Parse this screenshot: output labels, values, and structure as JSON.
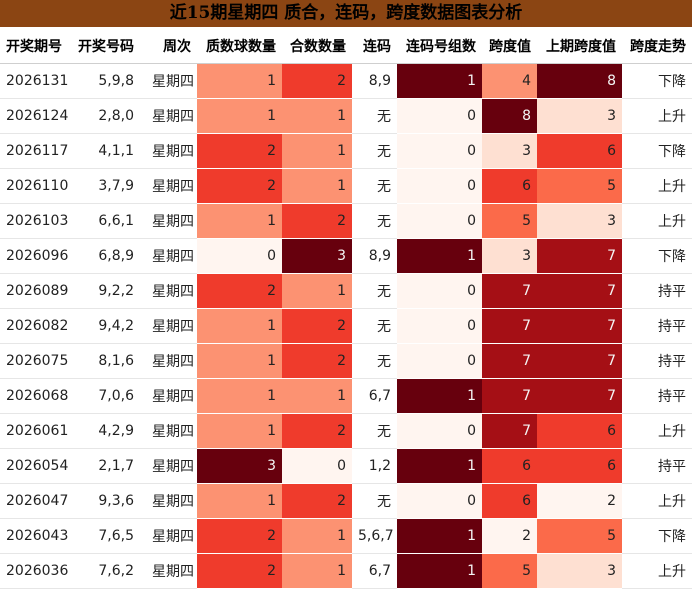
{
  "title": "近15期星期四 质合，连码，跨度数据图表分析",
  "columns": [
    {
      "key": "period",
      "label": "开奖期号",
      "align": "left",
      "width": 72
    },
    {
      "key": "numbers",
      "label": "开奖号码",
      "align": "right",
      "width": 68
    },
    {
      "key": "weekday",
      "label": "周次",
      "align": "right",
      "width": 57
    },
    {
      "key": "prime_count",
      "label": "质数球数量",
      "align": "right",
      "width": 85
    },
    {
      "key": "composite_count",
      "label": "合数数量",
      "align": "right",
      "width": 70
    },
    {
      "key": "consecutive",
      "label": "连码",
      "align": "right",
      "width": 45
    },
    {
      "key": "consec_groups",
      "label": "连码号组数",
      "align": "right",
      "width": 85
    },
    {
      "key": "span",
      "label": "跨度值",
      "align": "right",
      "width": 55
    },
    {
      "key": "prev_span",
      "label": "上期跨度值",
      "align": "right",
      "width": 85
    },
    {
      "key": "trend",
      "label": "跨度走势",
      "align": "right",
      "width": 70
    }
  ],
  "heat_columns": {
    "prime_count": {
      "min": 0,
      "max": 3
    },
    "composite_count": {
      "min": 0,
      "max": 3
    },
    "consec_groups": {
      "min": 0,
      "max": 1
    },
    "span": {
      "min": 2,
      "max": 8
    },
    "prev_span": {
      "min": 2,
      "max": 8
    }
  },
  "colors": {
    "header_bg": "#8b4513",
    "heat_scale": [
      "#fff5f0",
      "#fee0d2",
      "#fcbba1",
      "#fc9272",
      "#fb6a4a",
      "#ef3b2c",
      "#cb181d",
      "#a50f15",
      "#67000d"
    ]
  },
  "chart_data": {
    "type": "table",
    "title": "近15期星期四 质合，连码，跨度数据图表分析",
    "rows": [
      {
        "period": "2026131",
        "numbers": "5,9,8",
        "weekday": "星期四",
        "prime_count": 1,
        "composite_count": 2,
        "consecutive": "8,9",
        "consec_groups": 1,
        "span": 4,
        "prev_span": 8,
        "trend": "下降"
      },
      {
        "period": "2026124",
        "numbers": "2,8,0",
        "weekday": "星期四",
        "prime_count": 1,
        "composite_count": 1,
        "consecutive": "无",
        "consec_groups": 0,
        "span": 8,
        "prev_span": 3,
        "trend": "上升"
      },
      {
        "period": "2026117",
        "numbers": "4,1,1",
        "weekday": "星期四",
        "prime_count": 2,
        "composite_count": 1,
        "consecutive": "无",
        "consec_groups": 0,
        "span": 3,
        "prev_span": 6,
        "trend": "下降"
      },
      {
        "period": "2026110",
        "numbers": "3,7,9",
        "weekday": "星期四",
        "prime_count": 2,
        "composite_count": 1,
        "consecutive": "无",
        "consec_groups": 0,
        "span": 6,
        "prev_span": 5,
        "trend": "上升"
      },
      {
        "period": "2026103",
        "numbers": "6,6,1",
        "weekday": "星期四",
        "prime_count": 1,
        "composite_count": 2,
        "consecutive": "无",
        "consec_groups": 0,
        "span": 5,
        "prev_span": 3,
        "trend": "上升"
      },
      {
        "period": "2026096",
        "numbers": "6,8,9",
        "weekday": "星期四",
        "prime_count": 0,
        "composite_count": 3,
        "consecutive": "8,9",
        "consec_groups": 1,
        "span": 3,
        "prev_span": 7,
        "trend": "下降"
      },
      {
        "period": "2026089",
        "numbers": "9,2,2",
        "weekday": "星期四",
        "prime_count": 2,
        "composite_count": 1,
        "consecutive": "无",
        "consec_groups": 0,
        "span": 7,
        "prev_span": 7,
        "trend": "持平"
      },
      {
        "period": "2026082",
        "numbers": "9,4,2",
        "weekday": "星期四",
        "prime_count": 1,
        "composite_count": 2,
        "consecutive": "无",
        "consec_groups": 0,
        "span": 7,
        "prev_span": 7,
        "trend": "持平"
      },
      {
        "period": "2026075",
        "numbers": "8,1,6",
        "weekday": "星期四",
        "prime_count": 1,
        "composite_count": 2,
        "consecutive": "无",
        "consec_groups": 0,
        "span": 7,
        "prev_span": 7,
        "trend": "持平"
      },
      {
        "period": "2026068",
        "numbers": "7,0,6",
        "weekday": "星期四",
        "prime_count": 1,
        "composite_count": 1,
        "consecutive": "6,7",
        "consec_groups": 1,
        "span": 7,
        "prev_span": 7,
        "trend": "持平"
      },
      {
        "period": "2026061",
        "numbers": "4,2,9",
        "weekday": "星期四",
        "prime_count": 1,
        "composite_count": 2,
        "consecutive": "无",
        "consec_groups": 0,
        "span": 7,
        "prev_span": 6,
        "trend": "上升"
      },
      {
        "period": "2026054",
        "numbers": "2,1,7",
        "weekday": "星期四",
        "prime_count": 3,
        "composite_count": 0,
        "consecutive": "1,2",
        "consec_groups": 1,
        "span": 6,
        "prev_span": 6,
        "trend": "持平"
      },
      {
        "period": "2026047",
        "numbers": "9,3,6",
        "weekday": "星期四",
        "prime_count": 1,
        "composite_count": 2,
        "consecutive": "无",
        "consec_groups": 0,
        "span": 6,
        "prev_span": 2,
        "trend": "上升"
      },
      {
        "period": "2026043",
        "numbers": "7,6,5",
        "weekday": "星期四",
        "prime_count": 2,
        "composite_count": 1,
        "consecutive": "5,6,7",
        "consec_groups": 1,
        "span": 2,
        "prev_span": 5,
        "trend": "下降"
      },
      {
        "period": "2026036",
        "numbers": "7,6,2",
        "weekday": "星期四",
        "prime_count": 2,
        "composite_count": 1,
        "consecutive": "6,7",
        "consec_groups": 1,
        "span": 5,
        "prev_span": 3,
        "trend": "上升"
      }
    ]
  }
}
